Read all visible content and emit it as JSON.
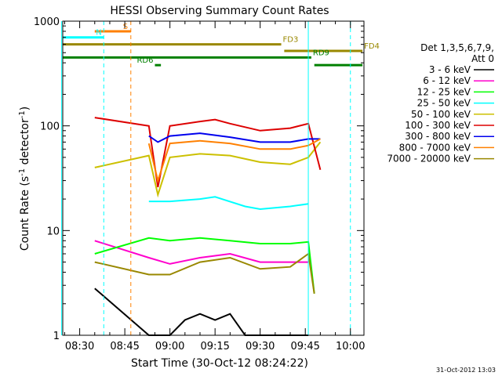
{
  "chart_data": {
    "type": "line",
    "title": "HESSI Observing Summary Count Rates",
    "xlabel": "Start Time (30-Oct-12 08:24:22)",
    "ylabel_main": "Count Rate (s",
    "ylabel_sup1": "-1",
    "ylabel_mid": " detector",
    "ylabel_sup2": "-1",
    "ylabel_end": ")",
    "y_scale": "log",
    "ylim": [
      1,
      1000
    ],
    "xlim": [
      "08:24:22",
      "10:04:30"
    ],
    "x_ticks": [
      "08:30",
      "08:45",
      "09:00",
      "09:15",
      "09:30",
      "09:45",
      "10:00"
    ],
    "y_ticks": [
      {
        "label": "1",
        "value": 1
      },
      {
        "label": "10",
        "value": 10
      },
      {
        "label": "100",
        "value": 100
      },
      {
        "label": "1000",
        "value": 1000
      }
    ],
    "legend": {
      "header1": "Det 1,3,5,6,7,9,",
      "header2": "Att 0",
      "position": "right"
    },
    "timestamp": "31-Oct-2012 13:03",
    "series": [
      {
        "name": "3 - 6 keV",
        "color": "#000000",
        "x": [
          "08:35",
          "08:53",
          "09:00",
          "09:05",
          "09:10",
          "09:15",
          "09:20",
          "09:25",
          "09:30",
          "09:40",
          "09:46"
        ],
        "values": [
          2.8,
          1.0,
          1.0,
          1.4,
          1.6,
          1.4,
          1.6,
          1.0,
          1.0,
          1.0,
          1.0
        ]
      },
      {
        "name": "6 - 12 keV",
        "color": "#ff00cc",
        "x": [
          "08:35",
          "08:53",
          "09:00",
          "09:10",
          "09:20",
          "09:30",
          "09:40",
          "09:46"
        ],
        "values": [
          8,
          5.5,
          4.8,
          5.5,
          6.0,
          5.0,
          5.0,
          5.0
        ]
      },
      {
        "name": "12 - 25 keV",
        "color": "#00ff00",
        "x": [
          "08:35",
          "08:53",
          "09:00",
          "09:10",
          "09:20",
          "09:30",
          "09:40",
          "09:46",
          "09:48"
        ],
        "values": [
          6,
          8.5,
          8.0,
          8.5,
          8.0,
          7.5,
          7.5,
          7.8,
          2.5
        ]
      },
      {
        "name": "25 - 50 keV",
        "color": "#00ffff",
        "x": [
          "08:53",
          "09:00",
          "09:10",
          "09:15",
          "09:25",
          "09:30",
          "09:40",
          "09:46"
        ],
        "values": [
          19,
          19,
          20,
          21,
          17,
          16,
          17,
          18
        ]
      },
      {
        "name": "50 - 100 keV",
        "color": "#ccc000",
        "x": [
          "08:35",
          "08:53",
          "08:56",
          "09:00",
          "09:10",
          "09:20",
          "09:30",
          "09:40",
          "09:46",
          "09:50"
        ],
        "values": [
          40,
          52,
          22,
          50,
          54,
          52,
          45,
          43,
          50,
          70
        ]
      },
      {
        "name": "100 - 300 keV",
        "color": "#dd0000",
        "x": [
          "08:35",
          "08:53",
          "08:56",
          "09:00",
          "09:10",
          "09:15",
          "09:20",
          "09:30",
          "09:40",
          "09:46",
          "09:50"
        ],
        "values": [
          120,
          100,
          26,
          100,
          110,
          115,
          105,
          90,
          95,
          105,
          38
        ]
      },
      {
        "name": "300 - 800 keV",
        "color": "#0000ee",
        "x": [
          "08:53",
          "08:56",
          "09:00",
          "09:10",
          "09:20",
          "09:30",
          "09:40",
          "09:46",
          "09:50"
        ],
        "values": [
          80,
          70,
          80,
          85,
          78,
          70,
          70,
          75,
          75
        ]
      },
      {
        "name": "800 - 7000 keV",
        "color": "#ff8000",
        "x": [
          "08:53",
          "08:56",
          "09:00",
          "09:10",
          "09:20",
          "09:30",
          "09:40",
          "09:46",
          "09:50"
        ],
        "values": [
          68,
          30,
          68,
          72,
          68,
          60,
          60,
          65,
          75
        ]
      },
      {
        "name": "7000 - 20000 keV",
        "color": "#998800",
        "x": [
          "08:35",
          "08:53",
          "09:00",
          "09:10",
          "09:20",
          "09:30",
          "09:40",
          "09:46",
          "09:48"
        ],
        "values": [
          5,
          3.8,
          3.8,
          5,
          5.5,
          4.3,
          4.5,
          6,
          2.5
        ]
      }
    ],
    "flags": [
      {
        "label": "S",
        "color": "#ff8000",
        "start": "08:35",
        "end": "08:47",
        "level": 800
      },
      {
        "label": "N",
        "color": "#00ffff",
        "start": "08:24",
        "end": "08:38",
        "level": 700
      },
      {
        "label": "FD3",
        "color": "#998800",
        "start": "08:24",
        "end": "09:37",
        "level": 600
      },
      {
        "label": "FD4",
        "color": "#998800",
        "start": "09:38",
        "end": "10:04",
        "level": 520
      },
      {
        "label": "RD9",
        "color": "#008000",
        "start": "08:24",
        "end": "09:47",
        "level": 450
      },
      {
        "label": "RD6",
        "color": "#008000",
        "start": "08:55",
        "end": "08:57",
        "level": 380
      },
      {
        "label": "",
        "color": "#008000",
        "start": "09:48",
        "end": "10:04",
        "level": 380
      }
    ]
  }
}
